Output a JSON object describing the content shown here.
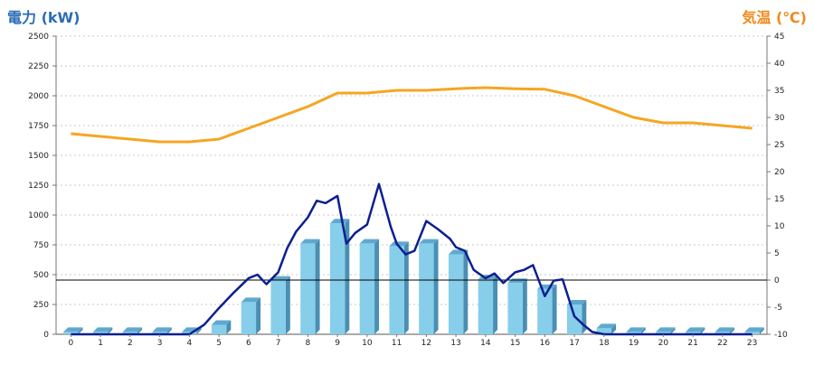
{
  "chart_data": {
    "type": "bar+line",
    "left_axis": {
      "title": "電力 (kW)",
      "range": [
        0,
        2500
      ],
      "ticks": [
        0,
        250,
        500,
        750,
        1000,
        1250,
        1500,
        1750,
        2000,
        2250,
        2500
      ]
    },
    "right_axis": {
      "title": "気温 (℃)",
      "range": [
        -10,
        45
      ],
      "ticks": [
        -10,
        -5,
        0,
        5,
        10,
        15,
        20,
        25,
        30,
        35,
        40,
        45
      ]
    },
    "categories": [
      "0",
      "1",
      "2",
      "3",
      "4",
      "5",
      "6",
      "7",
      "8",
      "9",
      "10",
      "11",
      "12",
      "13",
      "14",
      "15",
      "16",
      "17",
      "18",
      "19",
      "20",
      "21",
      "22",
      "23"
    ],
    "bars": {
      "color": "#87ceeb",
      "values": [
        20,
        20,
        20,
        20,
        20,
        80,
        270,
        450,
        760,
        930,
        760,
        740,
        760,
        670,
        460,
        430,
        380,
        250,
        50,
        20,
        20,
        20,
        20,
        20
      ]
    },
    "power_line": {
      "color": "#0b1f8f",
      "x": [
        0,
        1,
        2,
        3,
        4,
        4.5,
        5,
        5.5,
        6,
        6.3,
        6.6,
        7,
        7.3,
        7.6,
        8,
        8.3,
        8.6,
        9,
        9.3,
        9.6,
        10,
        10.4,
        10.8,
        11,
        11.3,
        11.6,
        12,
        12.4,
        12.8,
        13,
        13.3,
        13.6,
        14,
        14.3,
        14.6,
        15,
        15.3,
        15.6,
        16,
        16.3,
        16.6,
        17,
        17.3,
        17.6,
        18,
        19,
        20,
        21,
        22,
        23
      ],
      "y": [
        0,
        0,
        0,
        0,
        0,
        80,
        220,
        350,
        470,
        500,
        420,
        520,
        720,
        860,
        980,
        1120,
        1100,
        1160,
        760,
        850,
        920,
        1260,
        900,
        760,
        670,
        700,
        950,
        880,
        800,
        730,
        700,
        540,
        470,
        510,
        430,
        520,
        540,
        580,
        320,
        450,
        460,
        150,
        80,
        20,
        0,
        0,
        0,
        0,
        0,
        0
      ]
    },
    "temperature_line": {
      "color": "#f5a623",
      "x": [
        0,
        1,
        2,
        3,
        4,
        5,
        6,
        7,
        8,
        9,
        10,
        11,
        12,
        13,
        14,
        15,
        16,
        17,
        18,
        19,
        20,
        21,
        22,
        23
      ],
      "y": [
        27,
        26.5,
        26,
        25.5,
        25.5,
        26,
        28,
        30,
        32,
        34.5,
        34.5,
        35,
        35,
        35.3,
        35.5,
        35.3,
        35.2,
        34,
        32,
        30,
        29,
        29,
        28.5,
        28
      ]
    },
    "reference_line": {
      "axis": "right",
      "value": 0,
      "color": "#000000"
    },
    "grid": true
  }
}
